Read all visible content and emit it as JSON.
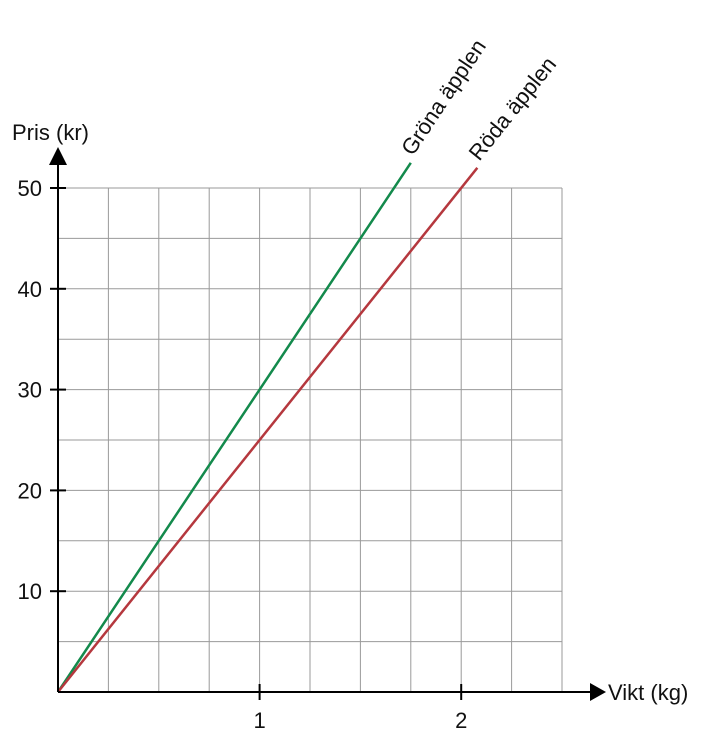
{
  "chart_data": {
    "type": "line",
    "xlabel": "Vikt (kg)",
    "ylabel": "Pris (kr)",
    "xlim": [
      0,
      2.5
    ],
    "ylim": [
      0,
      50
    ],
    "grid": true,
    "x_ticks": [
      {
        "value": 1,
        "label": "1"
      },
      {
        "value": 2,
        "label": "2"
      }
    ],
    "y_ticks": [
      {
        "value": 10,
        "label": "10"
      },
      {
        "value": 20,
        "label": "20"
      },
      {
        "value": 30,
        "label": "30"
      },
      {
        "value": 40,
        "label": "40"
      },
      {
        "value": 50,
        "label": "50"
      }
    ],
    "series": [
      {
        "name": "Gröna äpplen",
        "color": "#138a4c",
        "x": [
          0,
          1.75
        ],
        "y": [
          0,
          52.5
        ]
      },
      {
        "name": "Röda äpplen",
        "color": "#b5383e",
        "x": [
          0,
          2.08
        ],
        "y": [
          0,
          52
        ]
      }
    ]
  }
}
